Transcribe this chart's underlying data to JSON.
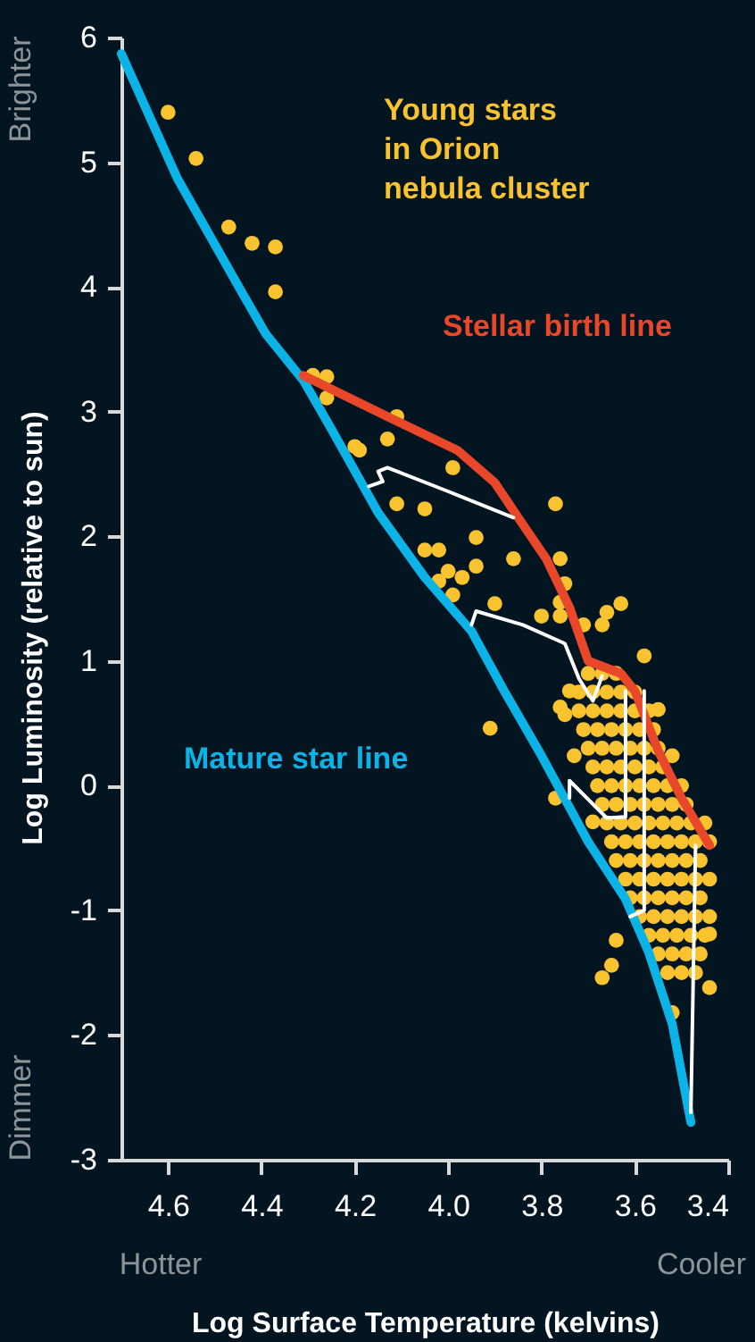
{
  "chart_data": {
    "type": "scatter",
    "xlabel": "Log Surface Temperature (kelvins)",
    "ylabel": "Log Luminosity (relative to sun)",
    "annotations": [
      "Brighter",
      "Dimmer",
      "Hotter",
      "Cooler"
    ],
    "xlim": [
      4.7,
      3.4
    ],
    "xticks": [
      4.6,
      4.4,
      4.2,
      {
        "value": 4.0,
        "label": "4.0"
      },
      3.8,
      3.6,
      3.4
    ],
    "ylim": [
      -3,
      6
    ],
    "yticks": [
      -3,
      -2,
      -1,
      0,
      1,
      2,
      3,
      4,
      5,
      6
    ],
    "grid": false,
    "series": [
      {
        "name": "Young stars in Orion nebula cluster",
        "color": "#f9c32f",
        "x": [
          4.6,
          4.54,
          4.47,
          4.42,
          4.37,
          4.37,
          4.29,
          4.26,
          4.26,
          4.11,
          4.13,
          4.2,
          4.19,
          4.11,
          4.05,
          3.99,
          3.77,
          3.94,
          4.05,
          4.02,
          3.94,
          3.86,
          4.0,
          3.97,
          4.02,
          3.99,
          3.9,
          3.76,
          3.75,
          3.76,
          3.8,
          3.76,
          3.63,
          3.66,
          3.67,
          3.71,
          3.58,
          3.91,
          3.55,
          3.52,
          3.75,
          3.74,
          3.73,
          3.69,
          3.77,
          3.76,
          3.67,
          3.65,
          3.64,
          3.52,
          3.44,
          3.44,
          3.44,
          3.7,
          3.67,
          3.64,
          3.72,
          3.69,
          3.66,
          3.63,
          3.6,
          3.72,
          3.69,
          3.66,
          3.63,
          3.6,
          3.57,
          3.71,
          3.68,
          3.65,
          3.62,
          3.59,
          3.56,
          3.7,
          3.67,
          3.64,
          3.61,
          3.58,
          3.55,
          3.69,
          3.66,
          3.63,
          3.6,
          3.57,
          3.54,
          3.68,
          3.65,
          3.62,
          3.59,
          3.56,
          3.53,
          3.5,
          3.67,
          3.64,
          3.61,
          3.58,
          3.55,
          3.52,
          3.49,
          3.66,
          3.63,
          3.6,
          3.57,
          3.54,
          3.51,
          3.48,
          3.45,
          3.65,
          3.62,
          3.59,
          3.56,
          3.53,
          3.5,
          3.47,
          3.44,
          3.64,
          3.61,
          3.58,
          3.55,
          3.52,
          3.49,
          3.46,
          3.62,
          3.59,
          3.56,
          3.53,
          3.5,
          3.47,
          3.61,
          3.58,
          3.55,
          3.52,
          3.49,
          3.46,
          3.59,
          3.56,
          3.53,
          3.5,
          3.47,
          3.44,
          3.57,
          3.54,
          3.51,
          3.48,
          3.45,
          3.55,
          3.52,
          3.49,
          3.46,
          3.53,
          3.5,
          3.47
        ],
        "values": [
          5.4,
          5.03,
          4.48,
          4.35,
          4.32,
          3.96,
          3.29,
          3.28,
          3.11,
          2.96,
          2.78,
          2.72,
          2.69,
          2.26,
          2.22,
          2.55,
          2.26,
          1.99,
          1.89,
          1.89,
          1.76,
          1.82,
          1.72,
          1.67,
          1.64,
          1.53,
          1.46,
          1.82,
          1.62,
          1.47,
          1.36,
          1.36,
          1.46,
          1.39,
          1.29,
          1.29,
          1.04,
          0.46,
          0.61,
          0.24,
          0.57,
          0.76,
          0.24,
          -0.29,
          -0.1,
          0.63,
          -1.54,
          -1.44,
          -1.24,
          -1.82,
          -0.75,
          -1.19,
          -1.62,
          0.9,
          0.9,
          0.9,
          0.75,
          0.75,
          0.75,
          0.75,
          0.75,
          0.6,
          0.6,
          0.6,
          0.6,
          0.6,
          0.6,
          0.45,
          0.45,
          0.45,
          0.45,
          0.45,
          0.45,
          0.3,
          0.3,
          0.3,
          0.3,
          0.3,
          0.3,
          0.15,
          0.15,
          0.15,
          0.15,
          0.15,
          0.15,
          0,
          0,
          0,
          0,
          0,
          0,
          0,
          -0.15,
          -0.15,
          -0.15,
          -0.15,
          -0.15,
          -0.15,
          -0.15,
          -0.3,
          -0.3,
          -0.3,
          -0.3,
          -0.3,
          -0.3,
          -0.3,
          -0.3,
          -0.45,
          -0.45,
          -0.45,
          -0.45,
          -0.45,
          -0.45,
          -0.45,
          -0.45,
          -0.6,
          -0.6,
          -0.6,
          -0.6,
          -0.6,
          -0.6,
          -0.6,
          -0.75,
          -0.75,
          -0.75,
          -0.75,
          -0.75,
          -0.75,
          -0.9,
          -0.9,
          -0.9,
          -0.9,
          -0.9,
          -0.9,
          -1.05,
          -1.05,
          -1.05,
          -1.05,
          -1.05,
          -1.05,
          -1.2,
          -1.2,
          -1.2,
          -1.2,
          -1.2,
          -1.35,
          -1.35,
          -1.35,
          -1.35,
          -1.5,
          -1.5,
          -1.5
        ]
      },
      {
        "name": "Mature star line",
        "type": "line",
        "color": "#0bb3e6",
        "x": [
          4.7,
          4.58,
          4.45,
          4.39,
          4.31,
          4.25,
          4.15,
          4.05,
          3.95,
          3.88,
          3.8,
          3.7,
          3.62,
          3.57,
          3.52,
          3.48
        ],
        "values": [
          5.87,
          4.87,
          4.01,
          3.62,
          3.25,
          2.86,
          2.19,
          1.67,
          1.24,
          0.76,
          0.24,
          -0.45,
          -0.91,
          -1.34,
          -1.91,
          -2.7
        ]
      },
      {
        "name": "Stellar birth line",
        "type": "line",
        "color": "#e8472a",
        "x": [
          4.31,
          4.13,
          3.98,
          3.9,
          3.85,
          3.79,
          3.74,
          3.7,
          3.63,
          3.6,
          3.55,
          3.5,
          3.44
        ],
        "values": [
          3.29,
          2.96,
          2.69,
          2.43,
          2.15,
          1.82,
          1.43,
          1.0,
          0.9,
          0.76,
          0.28,
          -0.1,
          -0.48
        ]
      },
      {
        "type": "line",
        "color": "#ffffff",
        "x": [
          3.86,
          4.0,
          4.13,
          4.15,
          4.14,
          4.17
        ],
        "values": [
          2.15,
          2.36,
          2.55,
          2.52,
          2.44,
          2.4
        ]
      },
      {
        "type": "line",
        "color": "#ffffff",
        "x": [
          3.67,
          3.69,
          3.72,
          3.75,
          3.84,
          3.94,
          3.95
        ],
        "values": [
          0.88,
          0.68,
          0.86,
          1.14,
          1.29,
          1.4,
          1.29
        ]
      },
      {
        "type": "line",
        "color": "#ffffff",
        "x": [
          3.62,
          3.62,
          3.66,
          3.74,
          3.74
        ],
        "values": [
          0.76,
          -0.25,
          -0.26,
          0.04,
          -0.1
        ]
      },
      {
        "type": "line",
        "color": "#ffffff",
        "x": [
          3.58,
          3.58,
          3.61
        ],
        "values": [
          0.76,
          -1.0,
          -1.05
        ]
      },
      {
        "type": "line",
        "color": "#ffffff",
        "x": [
          3.47,
          3.48
        ],
        "values": [
          -0.48,
          -2.62
        ]
      }
    ]
  }
}
